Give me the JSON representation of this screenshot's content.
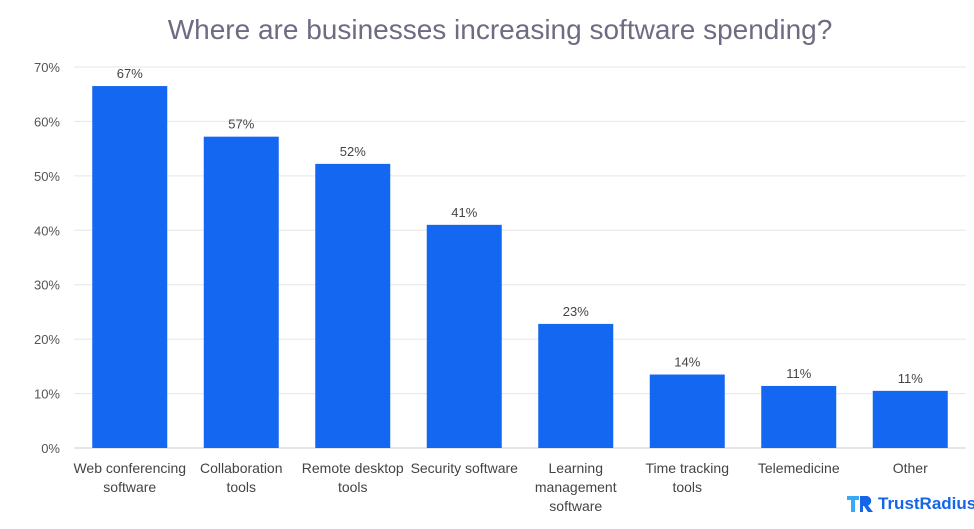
{
  "chart_data": {
    "type": "bar",
    "title": "Where are businesses increasing software spending?",
    "categories": [
      [
        "Web conferencing",
        "software"
      ],
      [
        "Collaboration",
        "tools"
      ],
      [
        "Remote desktop",
        "tools"
      ],
      [
        "Security software"
      ],
      [
        "Learning",
        "management",
        "software"
      ],
      [
        "Time tracking",
        "tools"
      ],
      [
        "Telemedicine"
      ],
      [
        "Other"
      ]
    ],
    "values": [
      66.5,
      57.2,
      52.2,
      41,
      22.8,
      13.5,
      11.4,
      10.5
    ],
    "data_labels": [
      "67%",
      "57%",
      "52%",
      "41%",
      "23%",
      "14%",
      "11%",
      "11%"
    ],
    "yticks": [
      "0%",
      "10%",
      "20%",
      "30%",
      "40%",
      "50%",
      "60%",
      "70%"
    ],
    "ylim": [
      0,
      70
    ],
    "xlabel": "",
    "ylabel": "",
    "grid": true,
    "bar_color": "#1467f0"
  },
  "brand": {
    "name": "TrustRadius"
  }
}
